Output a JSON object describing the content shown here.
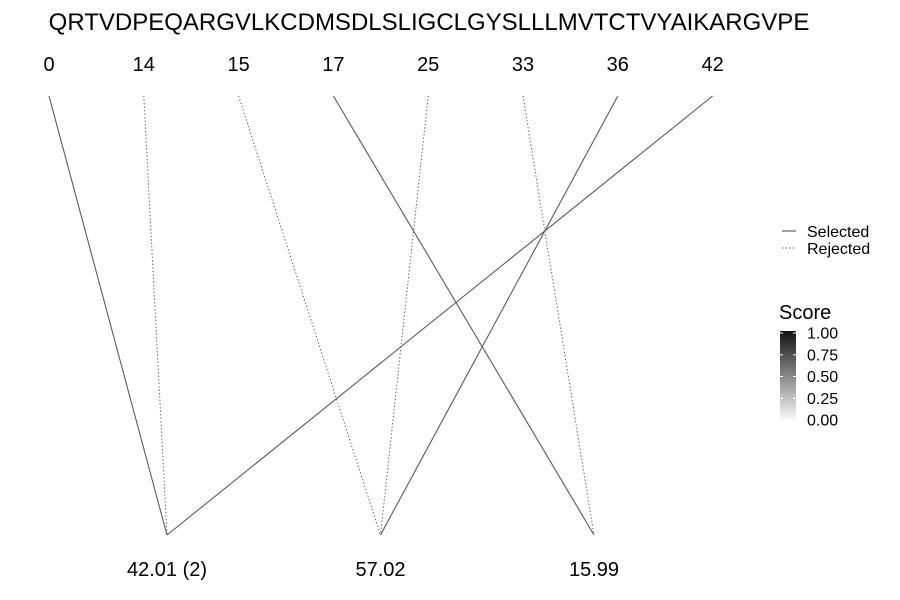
{
  "chart_data": {
    "type": "diagram",
    "sequence": "QRTVDPEQARGVLKCDMSDLSLIGCLGYSLLLMVTCTVYAIKARGVPE",
    "positions": [
      "0",
      "14",
      "15",
      "17",
      "25",
      "33",
      "36",
      "42"
    ],
    "masses": [
      "42.01 (2)",
      "57.02",
      "15.99"
    ],
    "links": [
      {
        "from": "0",
        "to": "42.01 (2)",
        "status": "Selected",
        "score": 0.5
      },
      {
        "from": "14",
        "to": "42.01 (2)",
        "status": "Rejected",
        "score": 0.5
      },
      {
        "from": "42",
        "to": "42.01 (2)",
        "status": "Selected",
        "score": 0.5
      },
      {
        "from": "15",
        "to": "57.02",
        "status": "Rejected",
        "score": 0.5
      },
      {
        "from": "25",
        "to": "57.02",
        "status": "Rejected",
        "score": 0.5
      },
      {
        "from": "36",
        "to": "57.02",
        "status": "Selected",
        "score": 0.5
      },
      {
        "from": "17",
        "to": "15.99",
        "status": "Selected",
        "score": 0.5
      },
      {
        "from": "33",
        "to": "15.99",
        "status": "Rejected",
        "score": 0.5
      }
    ],
    "legend": {
      "line_types": [
        "Selected",
        "Rejected"
      ],
      "score_title": "Score",
      "score_ticks": [
        "1.00",
        "0.75",
        "0.50",
        "0.25",
        "0.00"
      ],
      "score_range": [
        0,
        1
      ]
    }
  }
}
